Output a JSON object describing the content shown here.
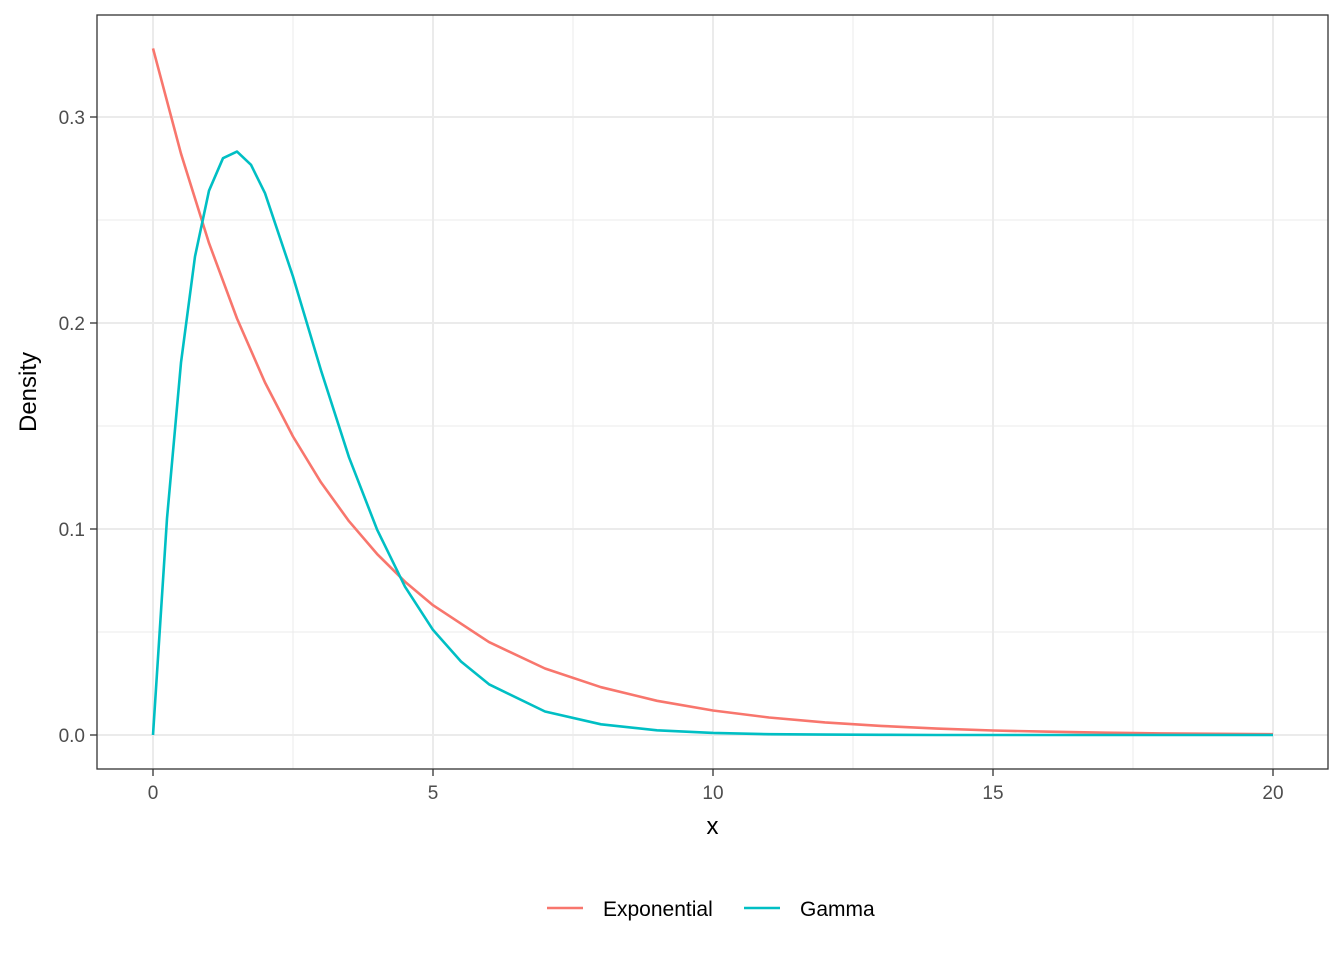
{
  "chart_data": {
    "type": "line",
    "title": "",
    "xlabel": "x",
    "ylabel": "Density",
    "xlim": [
      -1,
      21
    ],
    "ylim": [
      -0.0167,
      0.35
    ],
    "x_ticks": [
      0,
      5,
      10,
      15,
      20
    ],
    "x_tick_labels": [
      "0",
      "5",
      "10",
      "15",
      "20"
    ],
    "y_ticks": [
      0.0,
      0.1,
      0.2,
      0.3
    ],
    "y_tick_labels": [
      "0.0",
      "0.1",
      "0.2",
      "0.3"
    ],
    "grid": true,
    "legend_position": "bottom",
    "series": [
      {
        "name": "Exponential",
        "color": "#F8766D",
        "x": [
          0,
          0.5,
          1,
          1.5,
          2,
          2.5,
          3,
          3.5,
          4,
          4.5,
          5,
          6,
          7,
          8,
          9,
          10,
          11,
          12,
          13,
          14,
          15,
          16,
          17,
          18,
          19,
          20
        ],
        "y": [
          0.3333,
          0.2822,
          0.2388,
          0.2022,
          0.1711,
          0.1449,
          0.1226,
          0.1038,
          0.0879,
          0.0744,
          0.063,
          0.0451,
          0.0323,
          0.0232,
          0.0166,
          0.0119,
          0.0085,
          0.0061,
          0.0044,
          0.0031,
          0.0022,
          0.0016,
          0.0011,
          0.0008,
          0.0006,
          0.0004
        ]
      },
      {
        "name": "Gamma",
        "color": "#00BFC4",
        "x": [
          0,
          0.25,
          0.5,
          0.75,
          1,
          1.25,
          1.5,
          1.75,
          2,
          2.5,
          3,
          3.5,
          4,
          4.5,
          5,
          5.5,
          6,
          7,
          8,
          9,
          10,
          11,
          12,
          13,
          14,
          15,
          16,
          17,
          18,
          19,
          20
        ],
        "y": [
          0,
          0.1051,
          0.1808,
          0.2323,
          0.2642,
          0.28,
          0.2832,
          0.2768,
          0.263,
          0.2225,
          0.177,
          0.1348,
          0.0998,
          0.072,
          0.051,
          0.0357,
          0.0246,
          0.0114,
          0.0052,
          0.0023,
          0.001,
          0.0004,
          0.0002,
          0.0001,
          0,
          0,
          0,
          0,
          0,
          0,
          0
        ]
      }
    ]
  }
}
